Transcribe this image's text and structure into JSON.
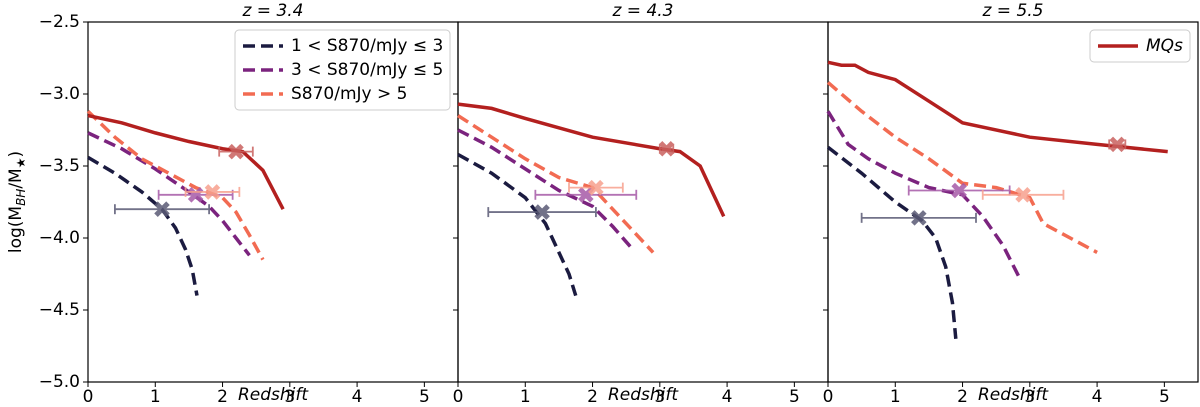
{
  "chart_data": [
    {
      "type": "line",
      "title": "z = 3.4",
      "xlabel": "Redshift",
      "ylabel": [
        "log(M",
        "BH",
        "/M",
        "★",
        ")"
      ],
      "xlim": [
        0,
        5.5
      ],
      "ylim": [
        -5.0,
        -2.5
      ],
      "xticks": [
        0,
        1,
        2,
        3,
        4,
        5
      ],
      "yticks": [
        {
          "value": -5.0,
          "label": "−5.0"
        },
        {
          "value": -4.5,
          "label": "−4.5"
        },
        {
          "value": -4.0,
          "label": "−4.0"
        },
        {
          "value": -3.5,
          "label": "−3.5"
        },
        {
          "value": -3.0,
          "label": "−3.0"
        },
        {
          "value": -2.5,
          "label": "−2.5"
        }
      ],
      "legend": "upper right",
      "series": [
        {
          "name": "1 < S870/mJy ≤ 3",
          "color": "#1b1b40",
          "dashed": true,
          "x": [
            0,
            0.4,
            0.8,
            1.1,
            1.3,
            1.45,
            1.55,
            1.62
          ],
          "values": [
            -3.44,
            -3.55,
            -3.68,
            -3.8,
            -3.93,
            -4.08,
            -4.22,
            -4.4
          ]
        },
        {
          "name": "3 < S870/mJy ≤ 5",
          "color": "#7b237e",
          "dashed": true,
          "x": [
            0,
            0.5,
            1.0,
            1.5,
            1.8,
            2.0,
            2.2,
            2.4
          ],
          "values": [
            -3.27,
            -3.38,
            -3.52,
            -3.68,
            -3.78,
            -3.88,
            -4.0,
            -4.12
          ]
        },
        {
          "name": "S870/mJy > 5",
          "color": "#f26b52",
          "dashed": true,
          "x": [
            0,
            0.4,
            0.8,
            1.2,
            1.6,
            2.0,
            2.2,
            2.4,
            2.6
          ],
          "values": [
            -3.12,
            -3.3,
            -3.45,
            -3.55,
            -3.65,
            -3.72,
            -3.82,
            -3.98,
            -4.15
          ]
        },
        {
          "color": "#b3201f",
          "dashed": false,
          "x": [
            0,
            0.5,
            1.0,
            1.5,
            2.0,
            2.3,
            2.6,
            2.9
          ],
          "values": [
            -3.15,
            -3.2,
            -3.27,
            -3.33,
            -3.38,
            -3.4,
            -3.53,
            -3.8
          ]
        }
      ],
      "points": [
        {
          "x": 1.1,
          "y": -3.8,
          "xerr": 0.7,
          "color": "#5a5a75"
        },
        {
          "x": 1.6,
          "y": -3.7,
          "xerr": 0.55,
          "color": "#a65aa8"
        },
        {
          "x": 1.85,
          "y": -3.68,
          "xerr": 0.4,
          "color": "#f7a08e"
        },
        {
          "x": 2.2,
          "y": -3.4,
          "xerr": 0.25,
          "color": "#c9615f"
        }
      ]
    },
    {
      "type": "line",
      "title": "z = 4.3",
      "xlabel": "Redshift",
      "xlim": [
        0,
        5.5
      ],
      "ylim": [
        -5.0,
        -2.5
      ],
      "xticks": [
        0,
        1,
        2,
        3,
        4,
        5
      ],
      "series": [
        {
          "color": "#1b1b40",
          "dashed": true,
          "x": [
            0,
            0.5,
            1.0,
            1.3,
            1.5,
            1.65,
            1.75
          ],
          "values": [
            -3.42,
            -3.55,
            -3.72,
            -3.9,
            -4.1,
            -4.25,
            -4.4
          ]
        },
        {
          "color": "#7b237e",
          "dashed": true,
          "x": [
            0,
            0.5,
            1.0,
            1.5,
            2.0,
            2.3,
            2.6
          ],
          "values": [
            -3.25,
            -3.37,
            -3.52,
            -3.67,
            -3.78,
            -3.92,
            -4.08
          ]
        },
        {
          "color": "#f26b52",
          "dashed": true,
          "x": [
            0,
            0.5,
            1.0,
            1.5,
            2.0,
            2.4,
            2.9
          ],
          "values": [
            -3.15,
            -3.3,
            -3.45,
            -3.58,
            -3.65,
            -3.85,
            -4.1
          ]
        },
        {
          "color": "#b3201f",
          "dashed": false,
          "x": [
            0,
            0.5,
            1.0,
            2.0,
            3.0,
            3.3,
            3.6,
            3.95
          ],
          "values": [
            -3.07,
            -3.1,
            -3.17,
            -3.3,
            -3.38,
            -3.4,
            -3.5,
            -3.85
          ]
        }
      ],
      "points": [
        {
          "x": 1.25,
          "y": -3.82,
          "xerr": 0.8,
          "color": "#5a5a75"
        },
        {
          "x": 1.9,
          "y": -3.7,
          "xerr": 0.75,
          "color": "#a65aa8"
        },
        {
          "x": 2.05,
          "y": -3.65,
          "xerr": 0.4,
          "color": "#f7a08e"
        },
        {
          "x": 3.1,
          "y": -3.38,
          "xerr": 0.1,
          "color": "#c9615f"
        }
      ]
    },
    {
      "type": "line",
      "title": "z = 5.5",
      "xlabel": "Redshift",
      "xlim": [
        0,
        5.5
      ],
      "ylim": [
        -5.0,
        -2.5
      ],
      "xticks": [
        0,
        1,
        2,
        3,
        4,
        5
      ],
      "legend": "upper right",
      "series": [
        {
          "color": "#1b1b40",
          "dashed": true,
          "x": [
            0,
            0.5,
            1.0,
            1.4,
            1.6,
            1.75,
            1.85,
            1.9
          ],
          "values": [
            -3.37,
            -3.55,
            -3.75,
            -3.88,
            -4.0,
            -4.2,
            -4.45,
            -4.7
          ]
        },
        {
          "color": "#7b237e",
          "dashed": true,
          "x": [
            0,
            0.3,
            0.6,
            1.0,
            1.5,
            2.0,
            2.3,
            2.6,
            2.85
          ],
          "values": [
            -3.12,
            -3.35,
            -3.45,
            -3.55,
            -3.65,
            -3.7,
            -3.85,
            -4.05,
            -4.28
          ]
        },
        {
          "color": "#f26b52",
          "dashed": true,
          "x": [
            0,
            0.5,
            1.0,
            1.5,
            2.0,
            2.5,
            3.0,
            3.2,
            4.0
          ],
          "values": [
            -2.92,
            -3.12,
            -3.3,
            -3.45,
            -3.62,
            -3.65,
            -3.72,
            -3.9,
            -4.1
          ]
        },
        {
          "name": "MQs",
          "color": "#b3201f",
          "dashed": false,
          "x": [
            0,
            0.2,
            0.4,
            0.6,
            1.0,
            1.5,
            2.0,
            3.0,
            4.0,
            5.05
          ],
          "values": [
            -2.78,
            -2.8,
            -2.8,
            -2.85,
            -2.9,
            -3.05,
            -3.2,
            -3.3,
            -3.35,
            -3.4
          ]
        }
      ],
      "points": [
        {
          "x": 1.35,
          "y": -3.86,
          "xerr": 0.85,
          "color": "#5a5a75"
        },
        {
          "x": 1.95,
          "y": -3.67,
          "xerr": 0.75,
          "color": "#a65aa8"
        },
        {
          "x": 2.9,
          "y": -3.7,
          "xerr": 0.6,
          "color": "#f7a08e"
        },
        {
          "x": 4.3,
          "y": -3.35,
          "xerr": 0.12,
          "color": "#c9615f"
        }
      ]
    }
  ]
}
